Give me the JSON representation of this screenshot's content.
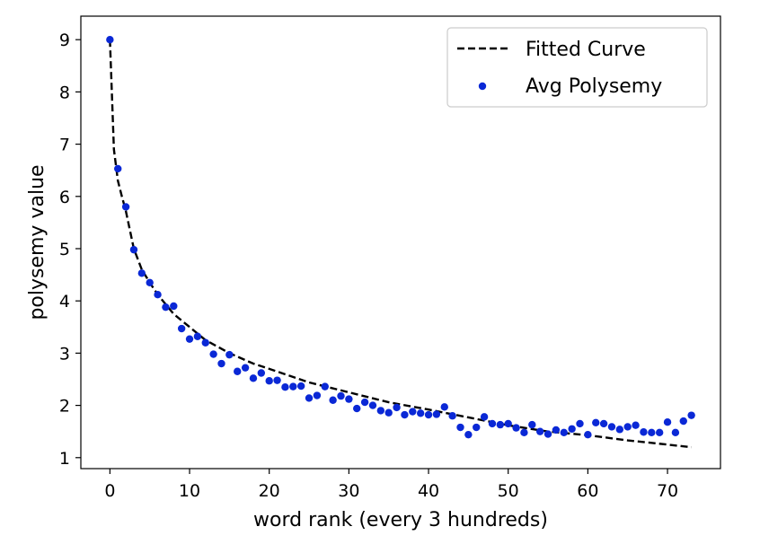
{
  "chart_data": {
    "type": "scatter",
    "title": "",
    "xlabel": "word rank (every 3 hundreds)",
    "ylabel": "polysemy value",
    "xlim": [
      -3.65,
      76.65
    ],
    "ylim": [
      0.79,
      9.45
    ],
    "xticks": [
      0,
      10,
      20,
      30,
      40,
      50,
      60,
      70
    ],
    "yticks": [
      1,
      2,
      3,
      4,
      5,
      6,
      7,
      8,
      9
    ],
    "grid": false,
    "legend_position": "top-right",
    "series": [
      {
        "name": "Fitted Curve",
        "kind": "line",
        "style": "dashed",
        "color": "#000000",
        "x": [
          0,
          0.5,
          1,
          1.5,
          2,
          3,
          4,
          5,
          6,
          8,
          10,
          12,
          15,
          18,
          20,
          25,
          30,
          35,
          40,
          45,
          50,
          55,
          60,
          65,
          70,
          73
        ],
        "y": [
          9.0,
          6.9,
          6.3,
          6.0,
          5.72,
          5.0,
          4.6,
          4.35,
          4.12,
          3.75,
          3.5,
          3.25,
          3.0,
          2.8,
          2.7,
          2.44,
          2.25,
          2.06,
          1.92,
          1.77,
          1.62,
          1.5,
          1.43,
          1.33,
          1.25,
          1.2
        ]
      },
      {
        "name": "Avg Polysemy",
        "kind": "scatter",
        "color": "#0a28d6",
        "x": [
          0,
          1,
          2,
          3,
          4,
          5,
          6,
          7,
          8,
          9,
          10,
          11,
          12,
          13,
          14,
          15,
          16,
          17,
          18,
          19,
          20,
          21,
          22,
          23,
          24,
          25,
          26,
          27,
          28,
          29,
          30,
          31,
          32,
          33,
          34,
          35,
          36,
          37,
          38,
          39,
          40,
          41,
          42,
          43,
          44,
          45,
          46,
          47,
          48,
          49,
          50,
          51,
          52,
          53,
          54,
          55,
          56,
          57,
          58,
          59,
          60,
          61,
          62,
          63,
          64,
          65,
          66,
          67,
          68,
          69,
          70,
          71,
          72,
          73
        ],
        "y": [
          9.0,
          6.53,
          5.8,
          4.98,
          4.53,
          4.35,
          4.12,
          3.88,
          3.9,
          3.47,
          3.27,
          3.32,
          3.2,
          2.98,
          2.8,
          2.97,
          2.65,
          2.72,
          2.52,
          2.62,
          2.47,
          2.48,
          2.35,
          2.36,
          2.37,
          2.14,
          2.19,
          2.36,
          2.1,
          2.18,
          2.12,
          1.94,
          2.06,
          2.0,
          1.9,
          1.86,
          1.96,
          1.82,
          1.88,
          1.85,
          1.82,
          1.83,
          1.97,
          1.8,
          1.58,
          1.44,
          1.58,
          1.78,
          1.65,
          1.63,
          1.65,
          1.57,
          1.48,
          1.63,
          1.5,
          1.45,
          1.53,
          1.48,
          1.55,
          1.65,
          1.44,
          1.67,
          1.65,
          1.59,
          1.54,
          1.59,
          1.62,
          1.49,
          1.48,
          1.48,
          1.68,
          1.48,
          1.7,
          1.81
        ]
      }
    ]
  }
}
